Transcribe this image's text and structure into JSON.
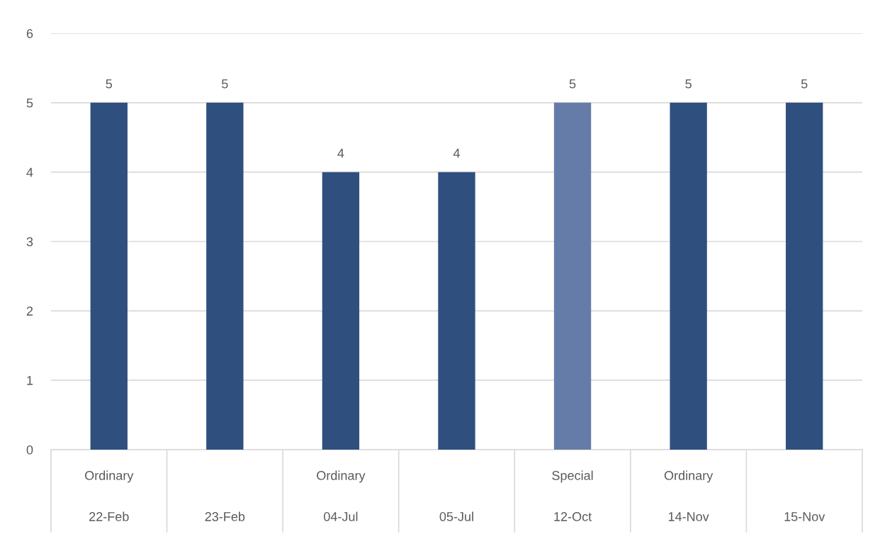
{
  "chart_data": {
    "type": "bar",
    "categories": [
      "Ordinary\n22-Feb",
      "23-Feb",
      "Ordinary\n04-Jul",
      "05-Jul",
      "Special\n12-Oct",
      "Ordinary\n14-Nov",
      "15-Nov"
    ],
    "values": [
      5,
      5,
      4,
      4,
      5,
      5,
      5
    ],
    "colors": [
      "#2f4f7f",
      "#2f4f7f",
      "#2f4f7f",
      "#2f4f7f",
      "#667ca8",
      "#2f4f7f",
      "#2f4f7f"
    ],
    "ylim": [
      0,
      6
    ],
    "yticks": [
      0,
      1,
      2,
      3,
      4,
      5,
      6
    ],
    "grid": "y",
    "data_labels": true
  }
}
